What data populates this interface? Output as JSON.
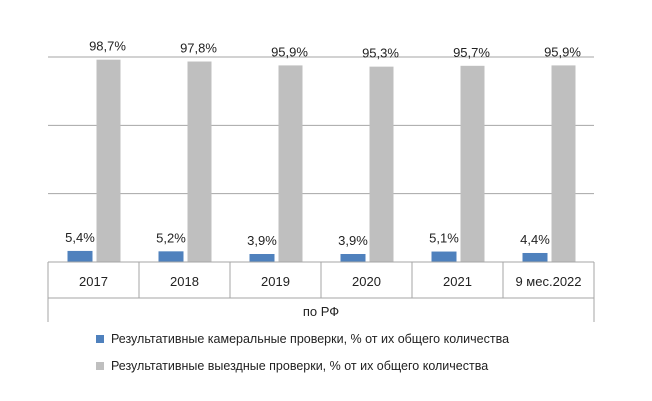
{
  "chart_data": {
    "type": "bar",
    "categories": [
      "2017",
      "2018",
      "2019",
      "2020",
      "2021",
      "9 мес.2022"
    ],
    "group_label": "по РФ",
    "series": [
      {
        "name": "Результативные камеральные проверки, % от их общего количества",
        "values": [
          5.4,
          5.2,
          3.9,
          3.9,
          5.1,
          4.4
        ],
        "labels": [
          "5,4%",
          "5,2%",
          "3,9%",
          "3,9%",
          "5,1%",
          "4,4%"
        ],
        "color": "#4f81bd"
      },
      {
        "name": "Результативные выездные проверки, % от их общего количества",
        "values": [
          98.7,
          97.8,
          95.9,
          95.3,
          95.7,
          95.9
        ],
        "labels": [
          "98,7%",
          "97,8%",
          "95,9%",
          "95,3%",
          "95,7%",
          "95,9%"
        ],
        "color": "#bfbfbf"
      }
    ],
    "ylim": [
      0,
      100
    ],
    "grid": true,
    "legend_position": "bottom"
  }
}
